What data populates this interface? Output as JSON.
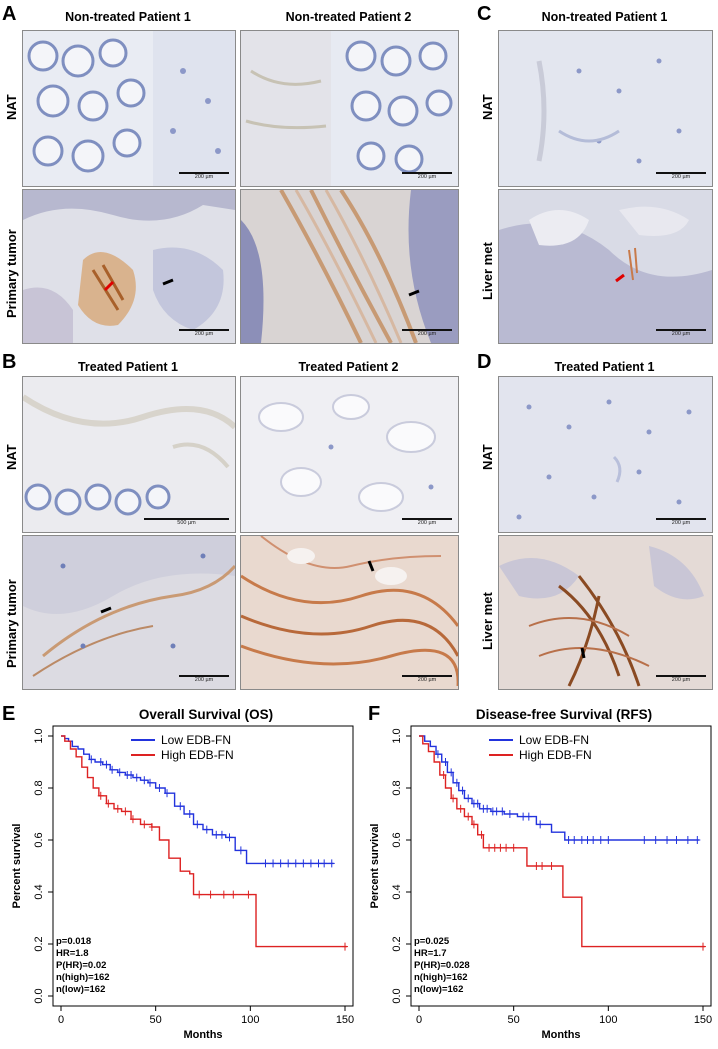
{
  "panels": {
    "A": {
      "label": "A",
      "col1": "Non-treated Patient 1",
      "col2": "Non-treated Patient 2",
      "row1": "NAT",
      "row2": "Primary tumor",
      "scale": [
        "200 µm",
        "200 µm",
        "200 µm",
        "200 µm"
      ]
    },
    "B": {
      "label": "B",
      "col1": "Treated Patient 1",
      "col2": "Treated Patient 2",
      "row1": "NAT",
      "row2": "Primary tumor",
      "scale": [
        "500 µm",
        "200 µm",
        "200 µm",
        "200 µm"
      ]
    },
    "C": {
      "label": "C",
      "col1": "Non-treated Patient 1",
      "row1": "NAT",
      "row2": "Liver met",
      "scale": [
        "200 µm",
        "200 µm"
      ]
    },
    "D": {
      "label": "D",
      "col1": "Treated Patient 1",
      "row1": "NAT",
      "row2": "Liver met",
      "scale": [
        "200 µm",
        "200 µm"
      ]
    },
    "E": {
      "label": "E"
    },
    "F": {
      "label": "F"
    }
  },
  "colors": {
    "low": "#2233dd",
    "high": "#dd2222",
    "tissue_blue": "#a9b7d6",
    "tissue_brown": "#b9743f"
  },
  "chart_data": [
    {
      "type": "line",
      "title": "Overall Survival (OS)",
      "xlabel": "Months",
      "ylabel": "Percent survival",
      "xlim": [
        0,
        150
      ],
      "ylim": [
        0,
        1.0
      ],
      "xticks": [
        0,
        50,
        100,
        150
      ],
      "yticks": [
        0.0,
        0.2,
        0.4,
        0.6,
        0.8,
        1.0
      ],
      "legend_position": "top-center",
      "series": [
        {
          "name": "Low EDB-FN",
          "color": "#2233dd",
          "steps": [
            [
              0,
              1.0
            ],
            [
              2,
              0.99
            ],
            [
              4,
              0.98
            ],
            [
              6,
              0.96
            ],
            [
              9,
              0.95
            ],
            [
              12,
              0.93
            ],
            [
              15,
              0.91
            ],
            [
              18,
              0.9
            ],
            [
              22,
              0.89
            ],
            [
              26,
              0.87
            ],
            [
              30,
              0.86
            ],
            [
              34,
              0.85
            ],
            [
              38,
              0.84
            ],
            [
              42,
              0.83
            ],
            [
              46,
              0.82
            ],
            [
              50,
              0.8
            ],
            [
              55,
              0.78
            ],
            [
              60,
              0.73
            ],
            [
              65,
              0.7
            ],
            [
              70,
              0.66
            ],
            [
              75,
              0.64
            ],
            [
              80,
              0.62
            ],
            [
              87,
              0.61
            ],
            [
              92,
              0.56
            ],
            [
              98,
              0.51
            ],
            [
              144,
              0.51
            ]
          ],
          "censored": [
            16,
            21,
            24,
            27,
            31,
            35,
            37,
            40,
            44,
            47,
            52,
            56,
            63,
            68,
            72,
            77,
            82,
            85,
            89,
            95,
            108,
            112,
            116,
            120,
            124,
            128,
            132,
            136,
            139,
            143
          ]
        },
        {
          "name": "High EDB-FN",
          "color": "#dd2222",
          "steps": [
            [
              0,
              1.0
            ],
            [
              2,
              0.98
            ],
            [
              5,
              0.95
            ],
            [
              8,
              0.92
            ],
            [
              11,
              0.88
            ],
            [
              14,
              0.84
            ],
            [
              17,
              0.8
            ],
            [
              20,
              0.77
            ],
            [
              24,
              0.74
            ],
            [
              28,
              0.72
            ],
            [
              32,
              0.71
            ],
            [
              37,
              0.68
            ],
            [
              42,
              0.66
            ],
            [
              48,
              0.65
            ],
            [
              52,
              0.6
            ],
            [
              57,
              0.53
            ],
            [
              63,
              0.48
            ],
            [
              68,
              0.47
            ],
            [
              70,
              0.39
            ],
            [
              103,
              0.39
            ],
            [
              103,
              0.19
            ],
            [
              151,
              0.19
            ]
          ],
          "censored": [
            21,
            25,
            30,
            34,
            38,
            44,
            48,
            73,
            79,
            86,
            91,
            99,
            150
          ]
        }
      ],
      "stats": [
        "p=0.018",
        "HR=1.8",
        "P(HR)=0.02",
        "n(high)=162",
        "n(low)=162"
      ]
    },
    {
      "type": "line",
      "title": "Disease-free Survival (RFS)",
      "xlabel": "Months",
      "ylabel": "Percent survival",
      "xlim": [
        0,
        150
      ],
      "ylim": [
        0,
        1.0
      ],
      "xticks": [
        0,
        50,
        100,
        150
      ],
      "yticks": [
        0.0,
        0.2,
        0.4,
        0.6,
        0.8,
        1.0
      ],
      "legend_position": "top-center",
      "series": [
        {
          "name": "Low EDB-FN",
          "color": "#2233dd",
          "steps": [
            [
              0,
              1.0
            ],
            [
              3,
              0.98
            ],
            [
              6,
              0.96
            ],
            [
              9,
              0.93
            ],
            [
              12,
              0.9
            ],
            [
              15,
              0.86
            ],
            [
              18,
              0.82
            ],
            [
              21,
              0.79
            ],
            [
              24,
              0.76
            ],
            [
              28,
              0.74
            ],
            [
              32,
              0.72
            ],
            [
              38,
              0.71
            ],
            [
              45,
              0.7
            ],
            [
              52,
              0.69
            ],
            [
              62,
              0.66
            ],
            [
              70,
              0.63
            ],
            [
              77,
              0.6
            ],
            [
              148,
              0.6
            ]
          ],
          "censored": [
            10,
            14,
            17,
            20,
            23,
            26,
            29,
            31,
            34,
            36,
            39,
            41,
            44,
            48,
            55,
            58,
            64,
            79,
            82,
            86,
            89,
            92,
            96,
            100,
            119,
            125,
            131,
            136,
            142,
            147
          ]
        },
        {
          "name": "High EDB-FN",
          "color": "#dd2222",
          "steps": [
            [
              0,
              1.0
            ],
            [
              2,
              0.97
            ],
            [
              5,
              0.94
            ],
            [
              8,
              0.9
            ],
            [
              11,
              0.85
            ],
            [
              14,
              0.8
            ],
            [
              17,
              0.76
            ],
            [
              20,
              0.72
            ],
            [
              24,
              0.69
            ],
            [
              28,
              0.66
            ],
            [
              31,
              0.62
            ],
            [
              34,
              0.57
            ],
            [
              55,
              0.57
            ],
            [
              57,
              0.5
            ],
            [
              76,
              0.5
            ],
            [
              76,
              0.38
            ],
            [
              86,
              0.38
            ],
            [
              86,
              0.19
            ],
            [
              151,
              0.19
            ]
          ],
          "censored": [
            13,
            18,
            22,
            26,
            29,
            33,
            37,
            40,
            43,
            46,
            50,
            62,
            65,
            70,
            150
          ]
        }
      ],
      "stats": [
        "p=0.025",
        "HR=1.7",
        "P(HR)=0.028",
        "n(high)=162",
        "n(low)=162"
      ]
    }
  ]
}
